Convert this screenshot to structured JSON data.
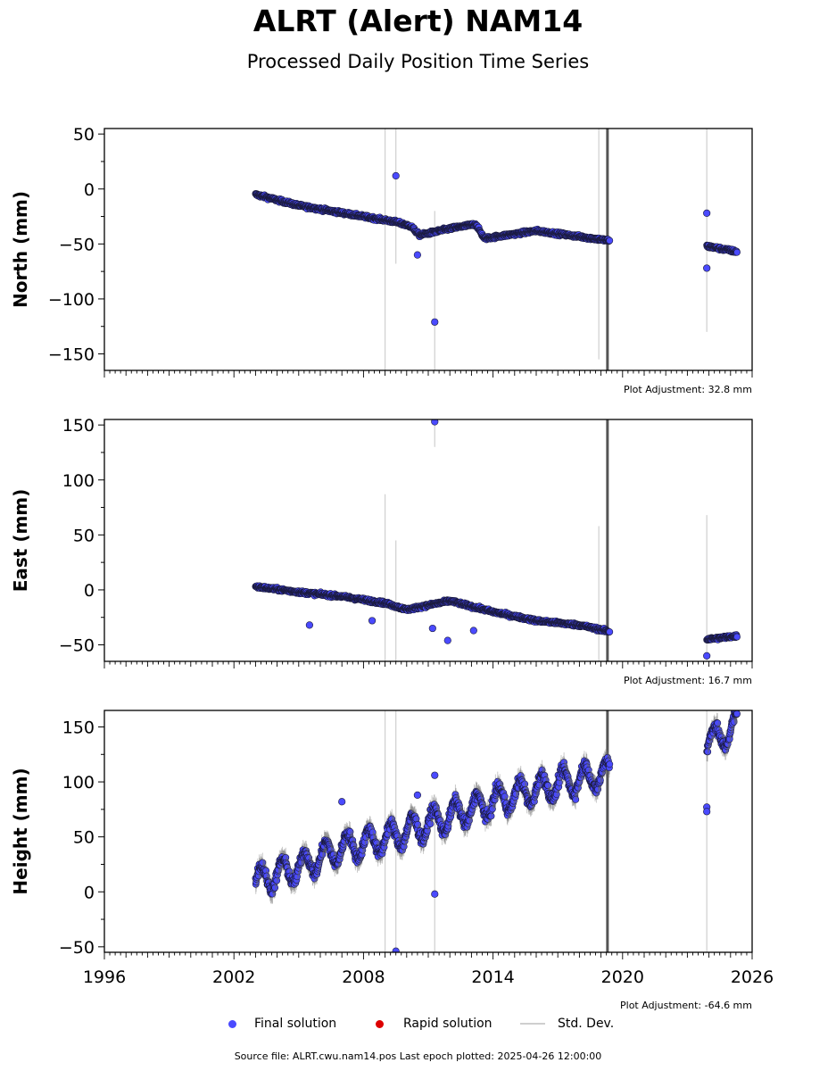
{
  "header": {
    "title": "ALRT (Alert) NAM14",
    "subtitle": "Processed Daily Position Time Series"
  },
  "legend": {
    "final_label": "Final solution",
    "rapid_label": "Rapid solution",
    "std_label": "Std. Dev.",
    "final_color": "#4a4aff",
    "rapid_color": "#dd0000",
    "std_color": "#cfcfcf"
  },
  "footer": {
    "text": "Source file: ALRT.cwu.nam14.pos  Last epoch plotted: 2025-04-26 12:00:00"
  },
  "chart_data": [
    {
      "type": "scatter",
      "ylabel": "North (mm)",
      "adjustment": "Plot Adjustment: 32.8 mm",
      "xlim": [
        1996,
        2026
      ],
      "ylim": [
        -165,
        55
      ],
      "yticks": [
        50,
        0,
        -50,
        -100,
        -150
      ],
      "segments": [
        {
          "x": [
            2003.0,
            2005.0,
            2008.0,
            2009.5,
            2010.2,
            2010.6,
            2012.0,
            2013.2,
            2013.6,
            2016.0,
            2019.4
          ],
          "y": [
            -5,
            -15,
            -25,
            -30,
            -34,
            -42,
            -36,
            -32,
            -45,
            -38,
            -47
          ]
        },
        {
          "x": [
            2023.9,
            2025.3
          ],
          "y": [
            -52,
            -57
          ]
        }
      ],
      "outliers": [
        {
          "x": 2009.5,
          "y": 12
        },
        {
          "x": 2011.3,
          "y": -121
        },
        {
          "x": 2010.5,
          "y": -60
        },
        {
          "x": 2023.9,
          "y": -22
        },
        {
          "x": 2023.9,
          "y": -72
        }
      ],
      "std_dev": [
        {
          "x": 2009.0,
          "y1": -165,
          "y2": 55,
          "w": 1.2
        },
        {
          "x": 2009.5,
          "y1": -68,
          "y2": 55,
          "w": 1.2
        },
        {
          "x": 2011.3,
          "y1": -165,
          "y2": -20,
          "w": 1.2
        },
        {
          "x": 2018.9,
          "y1": -155,
          "y2": 55,
          "w": 1.2
        },
        {
          "x": 2019.3,
          "y1": -165,
          "y2": 55,
          "w": 3
        },
        {
          "x": 2023.9,
          "y1": -130,
          "y2": 55,
          "w": 1.2
        }
      ]
    },
    {
      "type": "scatter",
      "ylabel": "East (mm)",
      "adjustment": "Plot Adjustment: 16.7 mm",
      "xlim": [
        1996,
        2026
      ],
      "ylim": [
        -65,
        155
      ],
      "yticks": [
        150,
        100,
        50,
        0,
        -50
      ],
      "segments": [
        {
          "x": [
            2003.0,
            2005.0,
            2007.0,
            2009.0,
            2010.0,
            2012.0,
            2014.0,
            2016.0,
            2018.0,
            2019.4
          ],
          "y": [
            3,
            -2,
            -6,
            -12,
            -18,
            -10,
            -20,
            -28,
            -32,
            -38
          ]
        },
        {
          "x": [
            2023.9,
            2025.3
          ],
          "y": [
            -45,
            -42
          ]
        }
      ],
      "outliers": [
        {
          "x": 2011.3,
          "y": 153
        },
        {
          "x": 2005.5,
          "y": -32
        },
        {
          "x": 2008.4,
          "y": -28
        },
        {
          "x": 2011.2,
          "y": -35
        },
        {
          "x": 2011.9,
          "y": -46
        },
        {
          "x": 2013.1,
          "y": -37
        },
        {
          "x": 2023.9,
          "y": -60
        }
      ],
      "std_dev": [
        {
          "x": 2009.0,
          "y1": -65,
          "y2": 87,
          "w": 1.2
        },
        {
          "x": 2009.5,
          "y1": -65,
          "y2": 45,
          "w": 1.2
        },
        {
          "x": 2011.3,
          "y1": 130,
          "y2": 155,
          "w": 1.2
        },
        {
          "x": 2018.9,
          "y1": -65,
          "y2": 58,
          "w": 1.2
        },
        {
          "x": 2019.3,
          "y1": -65,
          "y2": 155,
          "w": 3
        },
        {
          "x": 2023.9,
          "y1": -65,
          "y2": 68,
          "w": 1.2
        }
      ]
    },
    {
      "type": "scatter",
      "ylabel": "Height (mm)",
      "adjustment": "Plot Adjustment: -64.6 mm",
      "xlim": [
        1996,
        2026
      ],
      "ylim": [
        -55,
        165
      ],
      "yticks": [
        150,
        100,
        50,
        0,
        -50
      ],
      "xticks": [
        1996,
        2002,
        2008,
        2014,
        2020,
        2026
      ],
      "segments": [
        {
          "x": [
            2003.0,
            2005.0,
            2007.0,
            2009.0,
            2011.0,
            2013.0,
            2015.0,
            2017.0,
            2019.4
          ],
          "y": [
            10,
            22,
            40,
            48,
            62,
            75,
            88,
            98,
            108
          ]
        },
        {
          "x": [
            2023.9,
            2025.3
          ],
          "y": [
            135,
            150
          ]
        }
      ],
      "outliers": [
        {
          "x": 2009.5,
          "y": -54
        },
        {
          "x": 2011.3,
          "y": -2
        },
        {
          "x": 2010.5,
          "y": 88
        },
        {
          "x": 2011.3,
          "y": 106
        },
        {
          "x": 2007.0,
          "y": 82
        },
        {
          "x": 2023.9,
          "y": 77
        },
        {
          "x": 2023.9,
          "y": 73
        }
      ],
      "std_dev": [
        {
          "x": 2009.0,
          "y1": -55,
          "y2": 165,
          "w": 1.2
        },
        {
          "x": 2009.5,
          "y1": -55,
          "y2": 165,
          "w": 1.2
        },
        {
          "x": 2011.3,
          "y1": -55,
          "y2": 80,
          "w": 1.2
        },
        {
          "x": 2019.3,
          "y1": -55,
          "y2": 165,
          "w": 3
        },
        {
          "x": 2023.9,
          "y1": -55,
          "y2": 165,
          "w": 1.2
        }
      ]
    }
  ]
}
